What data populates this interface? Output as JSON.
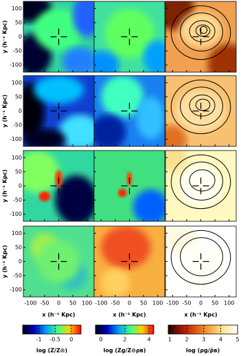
{
  "chart_data": {
    "type": "image",
    "xlabel": "x (h⁻¹ Kpc)",
    "ylabel": "y (h⁻¹ Kpc)",
    "xlim": [
      -125,
      125
    ],
    "ylim": [
      -125,
      125
    ],
    "xticks": [
      -100,
      -50,
      0,
      50,
      100
    ],
    "yticks": [
      -100,
      -50,
      0,
      50,
      100
    ],
    "colorbars": [
      {
        "label": "log (Z/Z⊙)",
        "lim": [
          -1.5,
          0.3
        ],
        "ticks": [
          -1,
          -0.5,
          0
        ]
      },
      {
        "label": "log (Zɡ/Z⊙ρʙ)",
        "lim": [
          -0.45,
          4.4
        ],
        "ticks": [
          0,
          2,
          4
        ]
      },
      {
        "label": "log (ρɡ/ρ̄ʙ)",
        "lim": [
          0.9,
          5
        ],
        "ticks": [
          1,
          2,
          3,
          4,
          5
        ]
      }
    ]
  }
}
